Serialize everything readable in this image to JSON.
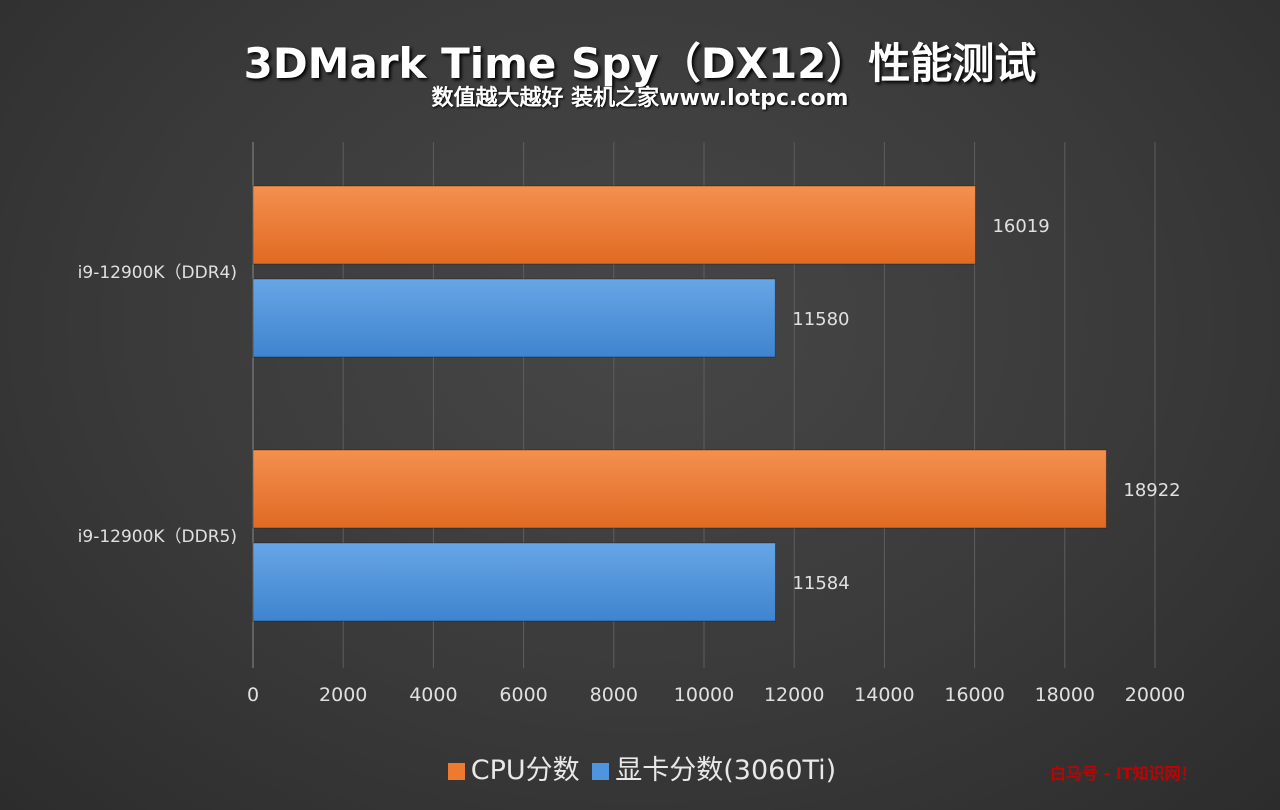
{
  "chart_data": {
    "type": "bar",
    "orientation": "horizontal",
    "title": "3DMark Time Spy（DX12）性能测试",
    "subtitle": "数值越大越好 装机之家www.lotpc.com",
    "categories": [
      "i9-12900K（DDR4)",
      "i9-12900K（DDR5)"
    ],
    "series": [
      {
        "name": "CPU分数",
        "color": "#ee7a30",
        "values": [
          16019,
          18922
        ]
      },
      {
        "name": "显卡分数(3060Ti)",
        "color": "#4f95dd",
        "values": [
          11580,
          11584
        ]
      }
    ],
    "xlim": [
      0,
      20000
    ],
    "xticks": [
      0,
      2000,
      4000,
      6000,
      8000,
      10000,
      12000,
      14000,
      16000,
      18000,
      20000
    ],
    "grid": true,
    "legend": "bottom"
  },
  "watermark": "白马号 - IT知识网！"
}
